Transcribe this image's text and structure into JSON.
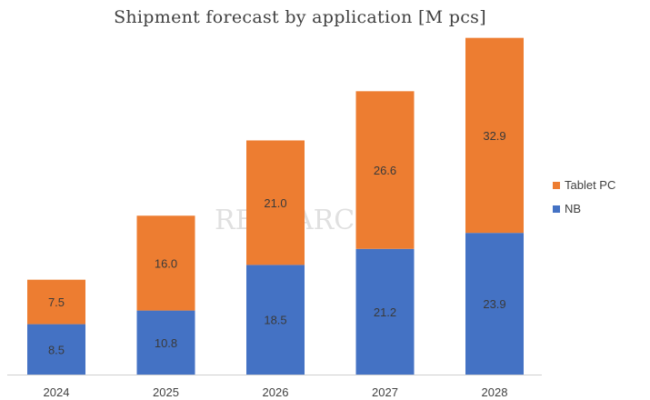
{
  "chart_data": {
    "type": "bar",
    "stacked": true,
    "title": "Shipment forecast by application [M pcs]",
    "categories": [
      "2024",
      "2025",
      "2026",
      "2027",
      "2028"
    ],
    "series": [
      {
        "name": "NB",
        "values": [
          8.5,
          10.8,
          18.5,
          21.2,
          23.9
        ],
        "color": "#4472c4"
      },
      {
        "name": "Tablet PC",
        "values": [
          7.5,
          16.0,
          21.0,
          26.6,
          32.9
        ],
        "color": "#ed7d31"
      }
    ],
    "value_labels": {
      "NB": [
        "8.5",
        "10.8",
        "18.5",
        "21.2",
        "23.9"
      ],
      "Tablet PC": [
        "7.5",
        "16.0",
        "21.0",
        "26.6",
        "32.9"
      ]
    },
    "legend_position": "right",
    "grid": false,
    "watermark": "RESEARCH"
  }
}
